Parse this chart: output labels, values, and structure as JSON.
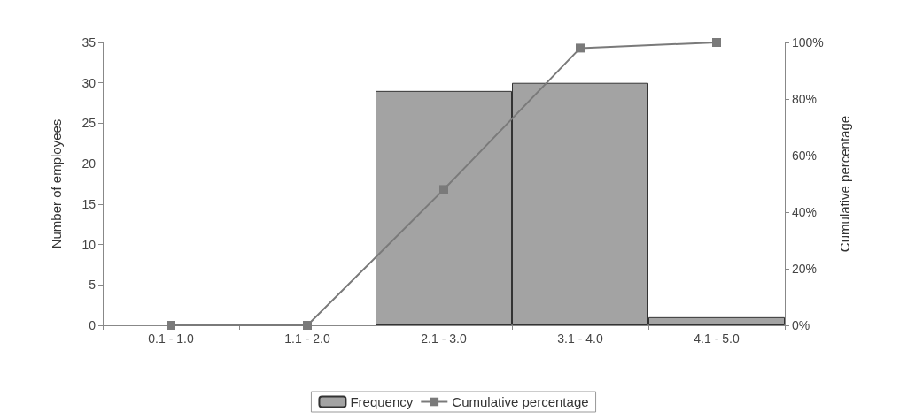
{
  "chart_data": {
    "type": "bar",
    "ylabel": "Number of employees",
    "y2label": "Cumulative percentage",
    "categories": [
      "0.1 - 1.0",
      "1.1 - 2.0",
      "2.1 - 3.0",
      "3.1 - 4.0",
      "4.1 - 5.0"
    ],
    "series": [
      {
        "name": "Frequency",
        "color": "#a3a3a3",
        "values": [
          0,
          0,
          29,
          30,
          1
        ]
      },
      {
        "name": "Cumulative percentage",
        "type": "line",
        "axis": "y2",
        "color": "#7a7a7a",
        "marker": "square",
        "values": [
          0,
          0,
          48,
          98,
          100
        ]
      }
    ],
    "ylim": [
      0,
      35
    ],
    "yticks": [
      0,
      5,
      10,
      15,
      20,
      25,
      30,
      35
    ],
    "y2lim": [
      0,
      100
    ],
    "y2ticks": [
      {
        "value": 0,
        "label": "0%"
      },
      {
        "value": 20,
        "label": "20%"
      },
      {
        "value": 40,
        "label": "40%"
      },
      {
        "value": 60,
        "label": "60%"
      },
      {
        "value": 80,
        "label": "80%"
      },
      {
        "value": 100,
        "label": "100%"
      }
    ],
    "grid": false,
    "legend": "bottom"
  }
}
